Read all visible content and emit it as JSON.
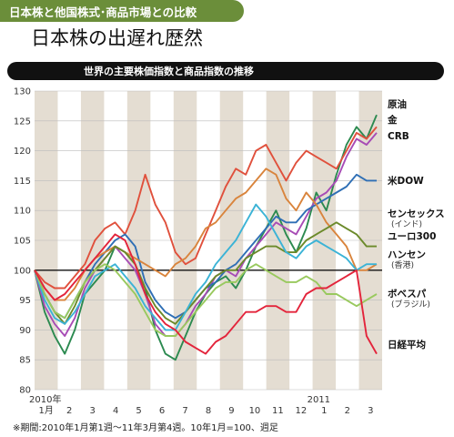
{
  "header": {
    "category": "日本株と他国株式･商品市場との比較",
    "headline": "日本株の出遅れ歴然"
  },
  "chart_data": {
    "type": "line",
    "title": "世界の主要株価指数と商品指数の推移",
    "footnote": "※期間:2010年1月第1週～11年3月第4週。10年1月=100、週足",
    "ylim": [
      80,
      130
    ],
    "yticks": [
      80,
      85,
      90,
      95,
      100,
      105,
      110,
      115,
      120,
      125,
      130
    ],
    "grid": true,
    "x_month_labels": [
      "1月",
      "2",
      "3",
      "4",
      "5",
      "6",
      "7",
      "8",
      "9",
      "10",
      "11",
      "12",
      "1",
      "2",
      "3"
    ],
    "x_year_labels": [
      {
        "label": "2010年",
        "month_index": 0
      },
      {
        "label": "2011",
        "month_index": 12
      }
    ],
    "series": [
      {
        "name": "原油",
        "sub": "",
        "color": "#2c8a50",
        "values": [
          100,
          93,
          89,
          86,
          90,
          96,
          98,
          100,
          104,
          103,
          101,
          97,
          90,
          86,
          85,
          89,
          93,
          96,
          98,
          99,
          97,
          100,
          104,
          107,
          110,
          106,
          103,
          107,
          113,
          110,
          116,
          121,
          124,
          122,
          126
        ]
      },
      {
        "name": "金",
        "sub": "",
        "color": "#e0503c",
        "values": [
          100,
          98,
          97,
          97,
          99,
          101,
          105,
          107,
          108,
          106,
          110,
          116,
          111,
          108,
          103,
          101,
          102,
          106,
          110,
          114,
          117,
          116,
          120,
          121,
          118,
          115,
          118,
          120,
          119,
          118,
          117,
          120,
          123,
          122,
          124
        ]
      },
      {
        "name": "CRB",
        "sub": "",
        "color": "#a74bb5",
        "values": [
          100,
          94,
          91,
          89,
          92,
          97,
          100,
          102,
          104,
          102,
          100,
          96,
          91,
          89,
          89,
          91,
          94,
          96,
          99,
          100,
          99,
          102,
          104,
          106,
          108,
          107,
          106,
          109,
          112,
          113,
          115,
          119,
          122,
          121,
          123
        ]
      },
      {
        "name": "米DOW",
        "sub": "",
        "color": "#2f6fb5",
        "values": [
          100,
          96,
          93,
          92,
          95,
          98,
          101,
          103,
          105,
          106,
          104,
          98,
          95,
          93,
          92,
          93,
          95,
          97,
          98,
          100,
          101,
          103,
          105,
          107,
          109,
          108,
          108,
          110,
          111,
          112,
          113,
          114,
          116,
          115,
          115
        ]
      },
      {
        "name": "センセックス",
        "sub": "(インド)",
        "color": "#d9843c",
        "values": [
          100,
          97,
          95,
          95,
          97,
          100,
          102,
          103,
          104,
          103,
          102,
          101,
          100,
          99,
          101,
          102,
          104,
          107,
          108,
          110,
          112,
          113,
          115,
          117,
          116,
          112,
          110,
          113,
          111,
          108,
          106,
          104,
          100,
          100,
          101
        ]
      },
      {
        "name": "ユーロ300",
        "sub": "",
        "color": "#6b8a2a",
        "values": [
          100,
          96,
          93,
          91,
          94,
          98,
          100,
          102,
          104,
          103,
          101,
          97,
          94,
          92,
          91,
          93,
          95,
          97,
          99,
          100,
          100,
          102,
          103,
          104,
          104,
          103,
          103,
          105,
          106,
          107,
          108,
          107,
          106,
          104,
          104
        ]
      },
      {
        "name": "ハンセン",
        "sub": "(香港)",
        "color": "#3bb3d6",
        "values": [
          100,
          95,
          92,
          91,
          93,
          96,
          99,
          100,
          101,
          99,
          97,
          94,
          92,
          90,
          90,
          93,
          96,
          98,
          101,
          103,
          105,
          108,
          111,
          109,
          106,
          103,
          102,
          104,
          105,
          104,
          103,
          102,
          100,
          101,
          101
        ]
      },
      {
        "name": "ボベスパ",
        "sub": "(ブラジル)",
        "color": "#99c95e",
        "values": [
          100,
          96,
          93,
          92,
          95,
          98,
          100,
          101,
          100,
          98,
          96,
          93,
          90,
          89,
          89,
          91,
          93,
          95,
          97,
          98,
          98,
          100,
          101,
          100,
          99,
          98,
          98,
          99,
          98,
          96,
          96,
          95,
          94,
          95,
          96
        ]
      },
      {
        "name": "日経平均",
        "sub": "",
        "color": "#e3243b",
        "values": [
          100,
          97,
          95,
          96,
          98,
          100,
          102,
          104,
          106,
          105,
          101,
          96,
          93,
          91,
          90,
          88,
          87,
          86,
          88,
          89,
          91,
          93,
          93,
          94,
          94,
          93,
          93,
          96,
          97,
          97,
          98,
          99,
          100,
          89,
          86
        ]
      }
    ]
  }
}
